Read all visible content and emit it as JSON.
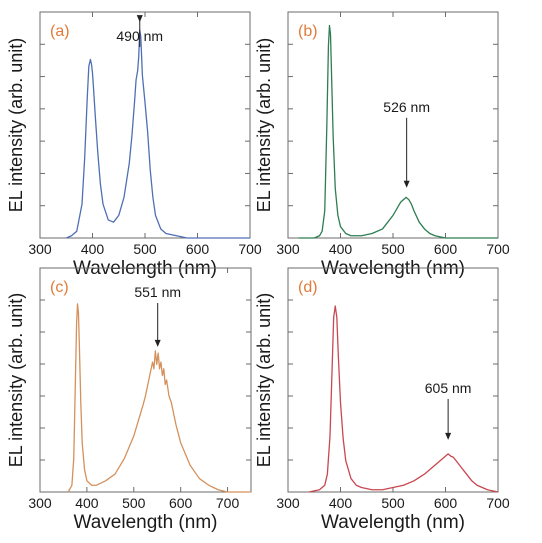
{
  "chart_data": [
    {
      "type": "line",
      "panel_label": "(a)",
      "xlabel": "Wavelength (nm)",
      "ylabel": "EL intensity (arb. unit)",
      "xlim": [
        300,
        700
      ],
      "xticks": [
        300,
        400,
        500,
        600,
        700
      ],
      "color": "#4f6fb5",
      "annotation": "490 nm",
      "annotation_x": 490,
      "series": [
        {
          "x": [
            350,
            360,
            370,
            380,
            385,
            390,
            393,
            396,
            398,
            400,
            402,
            405,
            410,
            415,
            420,
            430,
            440,
            450,
            460,
            470,
            475,
            480,
            483,
            486,
            488,
            490,
            492,
            495,
            500,
            505,
            510,
            515,
            520,
            530,
            540,
            560,
            580,
            600,
            650,
            700
          ],
          "y": [
            0.0,
            0.01,
            0.03,
            0.15,
            0.35,
            0.62,
            0.76,
            0.79,
            0.77,
            0.73,
            0.66,
            0.55,
            0.38,
            0.24,
            0.15,
            0.08,
            0.07,
            0.1,
            0.18,
            0.33,
            0.45,
            0.6,
            0.7,
            0.74,
            0.8,
            0.92,
            0.89,
            0.72,
            0.6,
            0.47,
            0.3,
            0.18,
            0.1,
            0.04,
            0.02,
            0.01,
            0.0,
            0.0,
            0.0,
            0.0
          ]
        }
      ]
    },
    {
      "type": "line",
      "panel_label": "(b)",
      "xlabel": "Wavelength (nm)",
      "ylabel": "EL intensity (arb. unit)",
      "xlim": [
        300,
        700
      ],
      "xticks": [
        300,
        400,
        500,
        600,
        700
      ],
      "color": "#2e7d52",
      "annotation": "526 nm",
      "annotation_x": 526,
      "series": [
        {
          "x": [
            320,
            350,
            360,
            365,
            370,
            374,
            377,
            379,
            381,
            383,
            386,
            390,
            395,
            400,
            410,
            420,
            440,
            460,
            480,
            490,
            500,
            510,
            515,
            520,
            525,
            530,
            535,
            540,
            550,
            560,
            570,
            580,
            600,
            620,
            650,
            700
          ],
          "y": [
            0.0,
            0.0,
            0.01,
            0.03,
            0.12,
            0.5,
            0.85,
            0.94,
            0.9,
            0.72,
            0.45,
            0.22,
            0.1,
            0.05,
            0.02,
            0.01,
            0.01,
            0.02,
            0.04,
            0.07,
            0.1,
            0.14,
            0.16,
            0.17,
            0.18,
            0.17,
            0.15,
            0.12,
            0.07,
            0.04,
            0.02,
            0.01,
            0.0,
            0.0,
            0.0,
            0.0
          ]
        }
      ]
    },
    {
      "type": "line",
      "panel_label": "(c)",
      "xlabel": "Wavelength (nm)",
      "ylabel": "EL intensity (arb. unit)",
      "xlim": [
        300,
        750
      ],
      "xticks": [
        300,
        400,
        500,
        600,
        700
      ],
      "color": "#d4915c",
      "annotation": "551 nm",
      "annotation_x": 551,
      "series": [
        {
          "x": [
            360,
            368,
            372,
            375,
            378,
            380,
            382,
            384,
            387,
            390,
            395,
            400,
            410,
            420,
            440,
            460,
            480,
            500,
            510,
            520,
            525,
            530,
            535,
            540,
            543,
            546,
            549,
            552,
            555,
            558,
            561,
            564,
            567,
            570,
            575,
            580,
            590,
            600,
            620,
            640,
            660,
            680,
            700,
            720,
            750
          ],
          "y": [
            0.0,
            0.03,
            0.15,
            0.45,
            0.75,
            0.84,
            0.8,
            0.65,
            0.4,
            0.22,
            0.1,
            0.05,
            0.03,
            0.03,
            0.05,
            0.08,
            0.15,
            0.25,
            0.32,
            0.39,
            0.43,
            0.48,
            0.53,
            0.58,
            0.55,
            0.63,
            0.57,
            0.62,
            0.55,
            0.58,
            0.52,
            0.55,
            0.48,
            0.5,
            0.43,
            0.4,
            0.3,
            0.22,
            0.12,
            0.06,
            0.03,
            0.01,
            0.0,
            0.0,
            0.0
          ]
        }
      ]
    },
    {
      "type": "line",
      "panel_label": "(d)",
      "xlabel": "Wavelength (nm)",
      "ylabel": "EL intensity (arb. unit)",
      "xlim": [
        300,
        700
      ],
      "xticks": [
        300,
        400,
        500,
        600,
        700
      ],
      "color": "#c9474f",
      "annotation": "605 nm",
      "annotation_x": 605,
      "series": [
        {
          "x": [
            340,
            360,
            370,
            375,
            380,
            384,
            387,
            390,
            393,
            396,
            400,
            405,
            410,
            420,
            430,
            440,
            460,
            480,
            500,
            520,
            540,
            560,
            570,
            580,
            590,
            595,
            600,
            605,
            610,
            615,
            620,
            630,
            640,
            650,
            660,
            680,
            700
          ],
          "y": [
            0.0,
            0.01,
            0.03,
            0.08,
            0.25,
            0.55,
            0.78,
            0.83,
            0.78,
            0.6,
            0.4,
            0.24,
            0.14,
            0.06,
            0.03,
            0.02,
            0.01,
            0.01,
            0.02,
            0.03,
            0.05,
            0.08,
            0.1,
            0.12,
            0.14,
            0.15,
            0.16,
            0.17,
            0.16,
            0.155,
            0.14,
            0.11,
            0.08,
            0.05,
            0.03,
            0.01,
            0.0
          ]
        }
      ]
    }
  ],
  "colors": {
    "panel_label": "#e07b39",
    "axis": "#6b6b6b",
    "arrow": "#222222"
  }
}
